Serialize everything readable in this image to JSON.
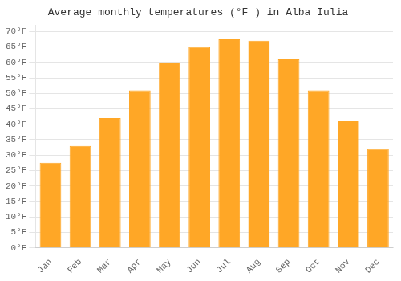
{
  "chart_data": {
    "type": "bar",
    "title": "Average monthly temperatures (°F ) in Alba Iulia",
    "categories": [
      "Jan",
      "Feb",
      "Mar",
      "Apr",
      "May",
      "Jun",
      "Jul",
      "Aug",
      "Sep",
      "Oct",
      "Nov",
      "Dec"
    ],
    "values": [
      27.5,
      33.0,
      42.0,
      51.0,
      60.0,
      65.0,
      67.5,
      67.0,
      61.0,
      51.0,
      41.0,
      32.0
    ],
    "color": "#FFA726",
    "ylim": [
      0,
      72
    ],
    "yticks": [
      {
        "value": 0,
        "label": "0°F"
      },
      {
        "value": 5,
        "label": "5°F"
      },
      {
        "value": 10,
        "label": "10°F"
      },
      {
        "value": 15,
        "label": "15°F"
      },
      {
        "value": 20,
        "label": "20°F"
      },
      {
        "value": 25,
        "label": "25°F"
      },
      {
        "value": 30,
        "label": "30°F"
      },
      {
        "value": 35,
        "label": "35°F"
      },
      {
        "value": 40,
        "label": "40°F"
      },
      {
        "value": 45,
        "label": "45°F"
      },
      {
        "value": 50,
        "label": "50°F"
      },
      {
        "value": 55,
        "label": "55°F"
      },
      {
        "value": 60,
        "label": "60°F"
      },
      {
        "value": 65,
        "label": "65°F"
      },
      {
        "value": 70,
        "label": "70°F"
      }
    ],
    "grid": true
  }
}
